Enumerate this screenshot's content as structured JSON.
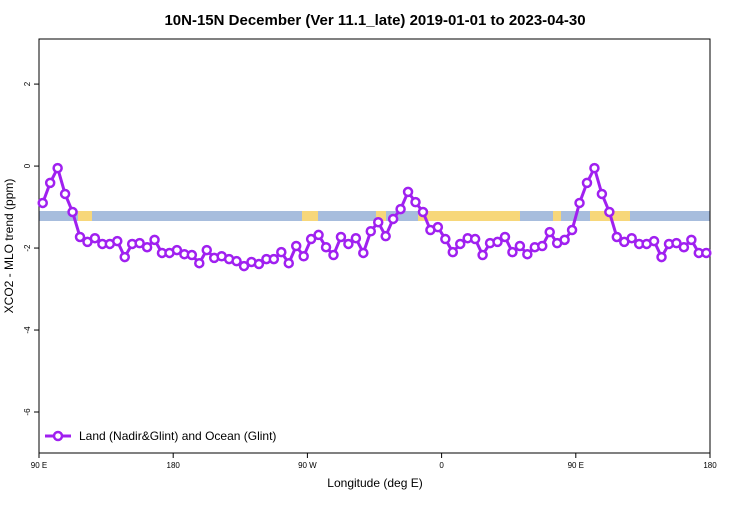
{
  "chart_data": {
    "type": "line",
    "title": "10N-15N December (Ver 11.1_late)   2019-01-01 to 2023-04-30",
    "x_label": "Longitude (deg E)",
    "y_label": "XCO2 - MLO trend (ppm)",
    "xlim": [
      90,
      540
    ],
    "xticks": [
      {
        "value": 90,
        "label": "90 E"
      },
      180,
      {
        "value": 270,
        "label": "90 W"
      },
      {
        "value": 360,
        "label": "0"
      },
      {
        "value": 450,
        "label": "90 E"
      },
      {
        "value": 540,
        "label": "180"
      }
    ],
    "ylim": [
      -7,
      3.1
    ],
    "yticks": [
      2,
      0,
      -2,
      -4,
      -6
    ],
    "legend": "bottom-left",
    "x": [
      92.5,
      97.5,
      102.5,
      107.5,
      112.5,
      117.5,
      122.5,
      127.5,
      132.5,
      137.5,
      142.5,
      147.5,
      152.5,
      157.5,
      162.5,
      167.5,
      172.5,
      177.5,
      182.5,
      187.5,
      192.5,
      197.5,
      202.5,
      207.5,
      212.5,
      217.5,
      222.5,
      227.5,
      232.5,
      237.5,
      242.5,
      247.5,
      252.5,
      257.5,
      262.5,
      267.5,
      272.5,
      277.5,
      282.5,
      287.5,
      292.5,
      297.5,
      302.5,
      307.5,
      312.5,
      317.5,
      322.5,
      327.5,
      332.5,
      337.5,
      342.5,
      347.5,
      352.5,
      357.5,
      362.5,
      367.5,
      372.5,
      377.5,
      382.5,
      387.5,
      392.5,
      397.5,
      402.5,
      407.5,
      412.5,
      417.5,
      422.5,
      427.5,
      432.5,
      437.5,
      442.5,
      447.5,
      452.5,
      457.5,
      462.5,
      467.5,
      472.5,
      477.5,
      482.5,
      487.5,
      492.5,
      497.5,
      502.5,
      507.5,
      512.5,
      517.5,
      522.5,
      527.5,
      532.5,
      537.5
    ],
    "series": [
      {
        "name": "Land (Nadir&Glint) and Ocean (Glint)",
        "color": "#a020f0",
        "values": [
          -0.9,
          -0.41,
          -0.05,
          -0.68,
          -1.12,
          -1.73,
          -1.85,
          -1.76,
          -1.9,
          -1.9,
          -1.83,
          -2.22,
          -1.9,
          -1.88,
          -1.98,
          -1.8,
          -2.12,
          -2.12,
          -2.05,
          -2.15,
          -2.17,
          -2.37,
          -2.05,
          -2.24,
          -2.2,
          -2.27,
          -2.32,
          -2.44,
          -2.34,
          -2.39,
          -2.27,
          -2.27,
          -2.1,
          -2.37,
          -1.95,
          -2.2,
          -1.78,
          -1.68,
          -1.98,
          -2.17,
          -1.73,
          -1.9,
          -1.76,
          -2.12,
          -1.59,
          -1.37,
          -1.71,
          -1.29,
          -1.05,
          -0.63,
          -0.88,
          -1.12,
          -1.56,
          -1.49,
          -1.78,
          -2.1,
          -1.9,
          -1.76,
          -1.78,
          -2.17,
          -1.88,
          -1.85,
          -1.73,
          -2.1,
          -1.95,
          -2.15,
          -1.98,
          -1.95,
          -1.61,
          -1.88,
          -1.8,
          -1.56,
          -0.9,
          -0.41,
          -0.05,
          -0.68,
          -1.12,
          -1.73,
          -1.85,
          -1.76,
          -1.9,
          -1.9,
          -1.83,
          -2.22,
          -1.9,
          -1.88,
          -1.98,
          -1.8,
          -2.12,
          -2.12
        ]
      }
    ]
  }
}
